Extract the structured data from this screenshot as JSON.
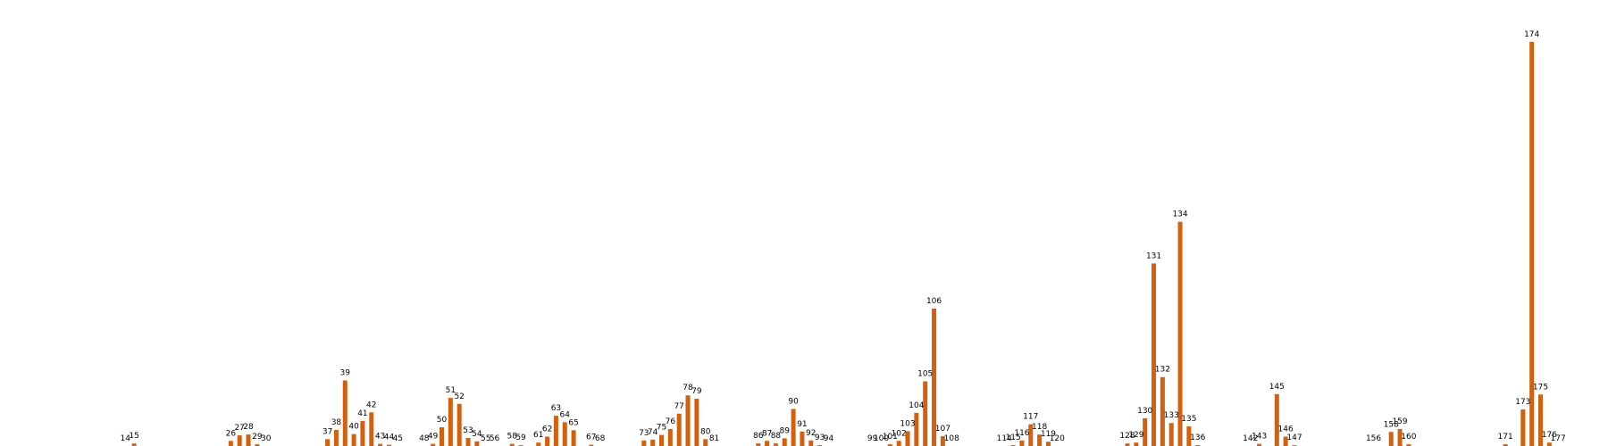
{
  "chart_data": {
    "type": "bar",
    "title": "",
    "xlabel": "",
    "ylabel": "",
    "grid": false,
    "legend": "none",
    "bar_color": "#d35f0f",
    "axes_visible": false,
    "xlim": [
      0,
      181
    ],
    "ylim": [
      0,
      100
    ],
    "bars": [
      {
        "x": 14,
        "label": "14",
        "value": 0
      },
      {
        "x": 15,
        "label": "15",
        "value": 0.6
      },
      {
        "x": 26,
        "label": "26",
        "value": 1.2
      },
      {
        "x": 27,
        "label": "27",
        "value": 2.5
      },
      {
        "x": 28,
        "label": "28",
        "value": 2.7
      },
      {
        "x": 29,
        "label": "29",
        "value": 0.4
      },
      {
        "x": 30,
        "label": "30",
        "value": 0
      },
      {
        "x": 37,
        "label": "37",
        "value": 1.6
      },
      {
        "x": 38,
        "label": "38",
        "value": 3.8
      },
      {
        "x": 39,
        "label": "39",
        "value": 15.4
      },
      {
        "x": 40,
        "label": "40",
        "value": 2.8
      },
      {
        "x": 41,
        "label": "41",
        "value": 5.9
      },
      {
        "x": 42,
        "label": "42",
        "value": 7.9
      },
      {
        "x": 43,
        "label": "43",
        "value": 0.5
      },
      {
        "x": 44,
        "label": "44",
        "value": 0.3
      },
      {
        "x": 45,
        "label": "45",
        "value": 0
      },
      {
        "x": 48,
        "label": "48",
        "value": 0
      },
      {
        "x": 49,
        "label": "49",
        "value": 0.5
      },
      {
        "x": 50,
        "label": "50",
        "value": 4.4
      },
      {
        "x": 51,
        "label": "51",
        "value": 11.3
      },
      {
        "x": 52,
        "label": "52",
        "value": 9.9
      },
      {
        "x": 53,
        "label": "53",
        "value": 1.9
      },
      {
        "x": 54,
        "label": "54",
        "value": 1.1
      },
      {
        "x": 55,
        "label": "55",
        "value": 0
      },
      {
        "x": 56,
        "label": "56",
        "value": 0
      },
      {
        "x": 58,
        "label": "58",
        "value": 0.5
      },
      {
        "x": 59,
        "label": "59",
        "value": 0.2
      },
      {
        "x": 61,
        "label": "61",
        "value": 0.8
      },
      {
        "x": 62,
        "label": "62",
        "value": 2.2
      },
      {
        "x": 63,
        "label": "63",
        "value": 7.1
      },
      {
        "x": 64,
        "label": "64",
        "value": 5.6
      },
      {
        "x": 65,
        "label": "65",
        "value": 3.7
      },
      {
        "x": 67,
        "label": "67",
        "value": 0.3
      },
      {
        "x": 68,
        "label": "68",
        "value": 0
      },
      {
        "x": 73,
        "label": "73",
        "value": 1.3
      },
      {
        "x": 74,
        "label": "74",
        "value": 1.5
      },
      {
        "x": 75,
        "label": "75",
        "value": 2.6
      },
      {
        "x": 76,
        "label": "76",
        "value": 4.0
      },
      {
        "x": 77,
        "label": "77",
        "value": 7.6
      },
      {
        "x": 78,
        "label": "78",
        "value": 11.9
      },
      {
        "x": 79,
        "label": "79",
        "value": 11.1
      },
      {
        "x": 80,
        "label": "80",
        "value": 1.6
      },
      {
        "x": 81,
        "label": "81",
        "value": 0
      },
      {
        "x": 86,
        "label": "86",
        "value": 0.6
      },
      {
        "x": 87,
        "label": "87",
        "value": 1.2
      },
      {
        "x": 88,
        "label": "88",
        "value": 0.6
      },
      {
        "x": 89,
        "label": "89",
        "value": 1.8
      },
      {
        "x": 90,
        "label": "90",
        "value": 8.7
      },
      {
        "x": 91,
        "label": "91",
        "value": 3.4
      },
      {
        "x": 92,
        "label": "92",
        "value": 1.3
      },
      {
        "x": 93,
        "label": "93",
        "value": 0.2
      },
      {
        "x": 94,
        "label": "94",
        "value": 0
      },
      {
        "x": 99,
        "label": "99",
        "value": 0
      },
      {
        "x": 100,
        "label": "100",
        "value": 0
      },
      {
        "x": 101,
        "label": "101",
        "value": 0.4
      },
      {
        "x": 102,
        "label": "102",
        "value": 1.2
      },
      {
        "x": 103,
        "label": "103",
        "value": 3.5
      },
      {
        "x": 104,
        "label": "104",
        "value": 7.8
      },
      {
        "x": 105,
        "label": "105",
        "value": 15.2
      },
      {
        "x": 106,
        "label": "106",
        "value": 32.3
      },
      {
        "x": 107,
        "label": "107",
        "value": 2.3
      },
      {
        "x": 108,
        "label": "108",
        "value": 0
      },
      {
        "x": 114,
        "label": "114",
        "value": 0
      },
      {
        "x": 115,
        "label": "115",
        "value": 0.2
      },
      {
        "x": 116,
        "label": "116",
        "value": 1.3
      },
      {
        "x": 117,
        "label": "117",
        "value": 5.1
      },
      {
        "x": 118,
        "label": "118",
        "value": 2.7
      },
      {
        "x": 119,
        "label": "119",
        "value": 1.0
      },
      {
        "x": 120,
        "label": "120",
        "value": 0
      },
      {
        "x": 128,
        "label": "128",
        "value": 0.6
      },
      {
        "x": 129,
        "label": "129",
        "value": 0.8
      },
      {
        "x": 130,
        "label": "130",
        "value": 6.5
      },
      {
        "x": 131,
        "label": "131",
        "value": 42.9
      },
      {
        "x": 132,
        "label": "132",
        "value": 16.2
      },
      {
        "x": 133,
        "label": "133",
        "value": 5.4
      },
      {
        "x": 134,
        "label": "134",
        "value": 52.7
      },
      {
        "x": 135,
        "label": "135",
        "value": 4.6
      },
      {
        "x": 136,
        "label": "136",
        "value": 0.2
      },
      {
        "x": 142,
        "label": "142",
        "value": 0
      },
      {
        "x": 143,
        "label": "143",
        "value": 0.5
      },
      {
        "x": 145,
        "label": "145",
        "value": 12.2
      },
      {
        "x": 146,
        "label": "146",
        "value": 2.2
      },
      {
        "x": 147,
        "label": "147",
        "value": 0.2
      },
      {
        "x": 156,
        "label": "156",
        "value": 0
      },
      {
        "x": 158,
        "label": "158",
        "value": 3.3
      },
      {
        "x": 159,
        "label": "159",
        "value": 4.0
      },
      {
        "x": 160,
        "label": "160",
        "value": 0.4
      },
      {
        "x": 171,
        "label": "171",
        "value": 0.4
      },
      {
        "x": 173,
        "label": "173",
        "value": 8.6
      },
      {
        "x": 174,
        "label": "174",
        "value": 95.0
      },
      {
        "x": 175,
        "label": "175",
        "value": 12.1
      },
      {
        "x": 176,
        "label": "176",
        "value": 0.8
      },
      {
        "x": 177,
        "label": "177",
        "value": 0
      }
    ]
  }
}
